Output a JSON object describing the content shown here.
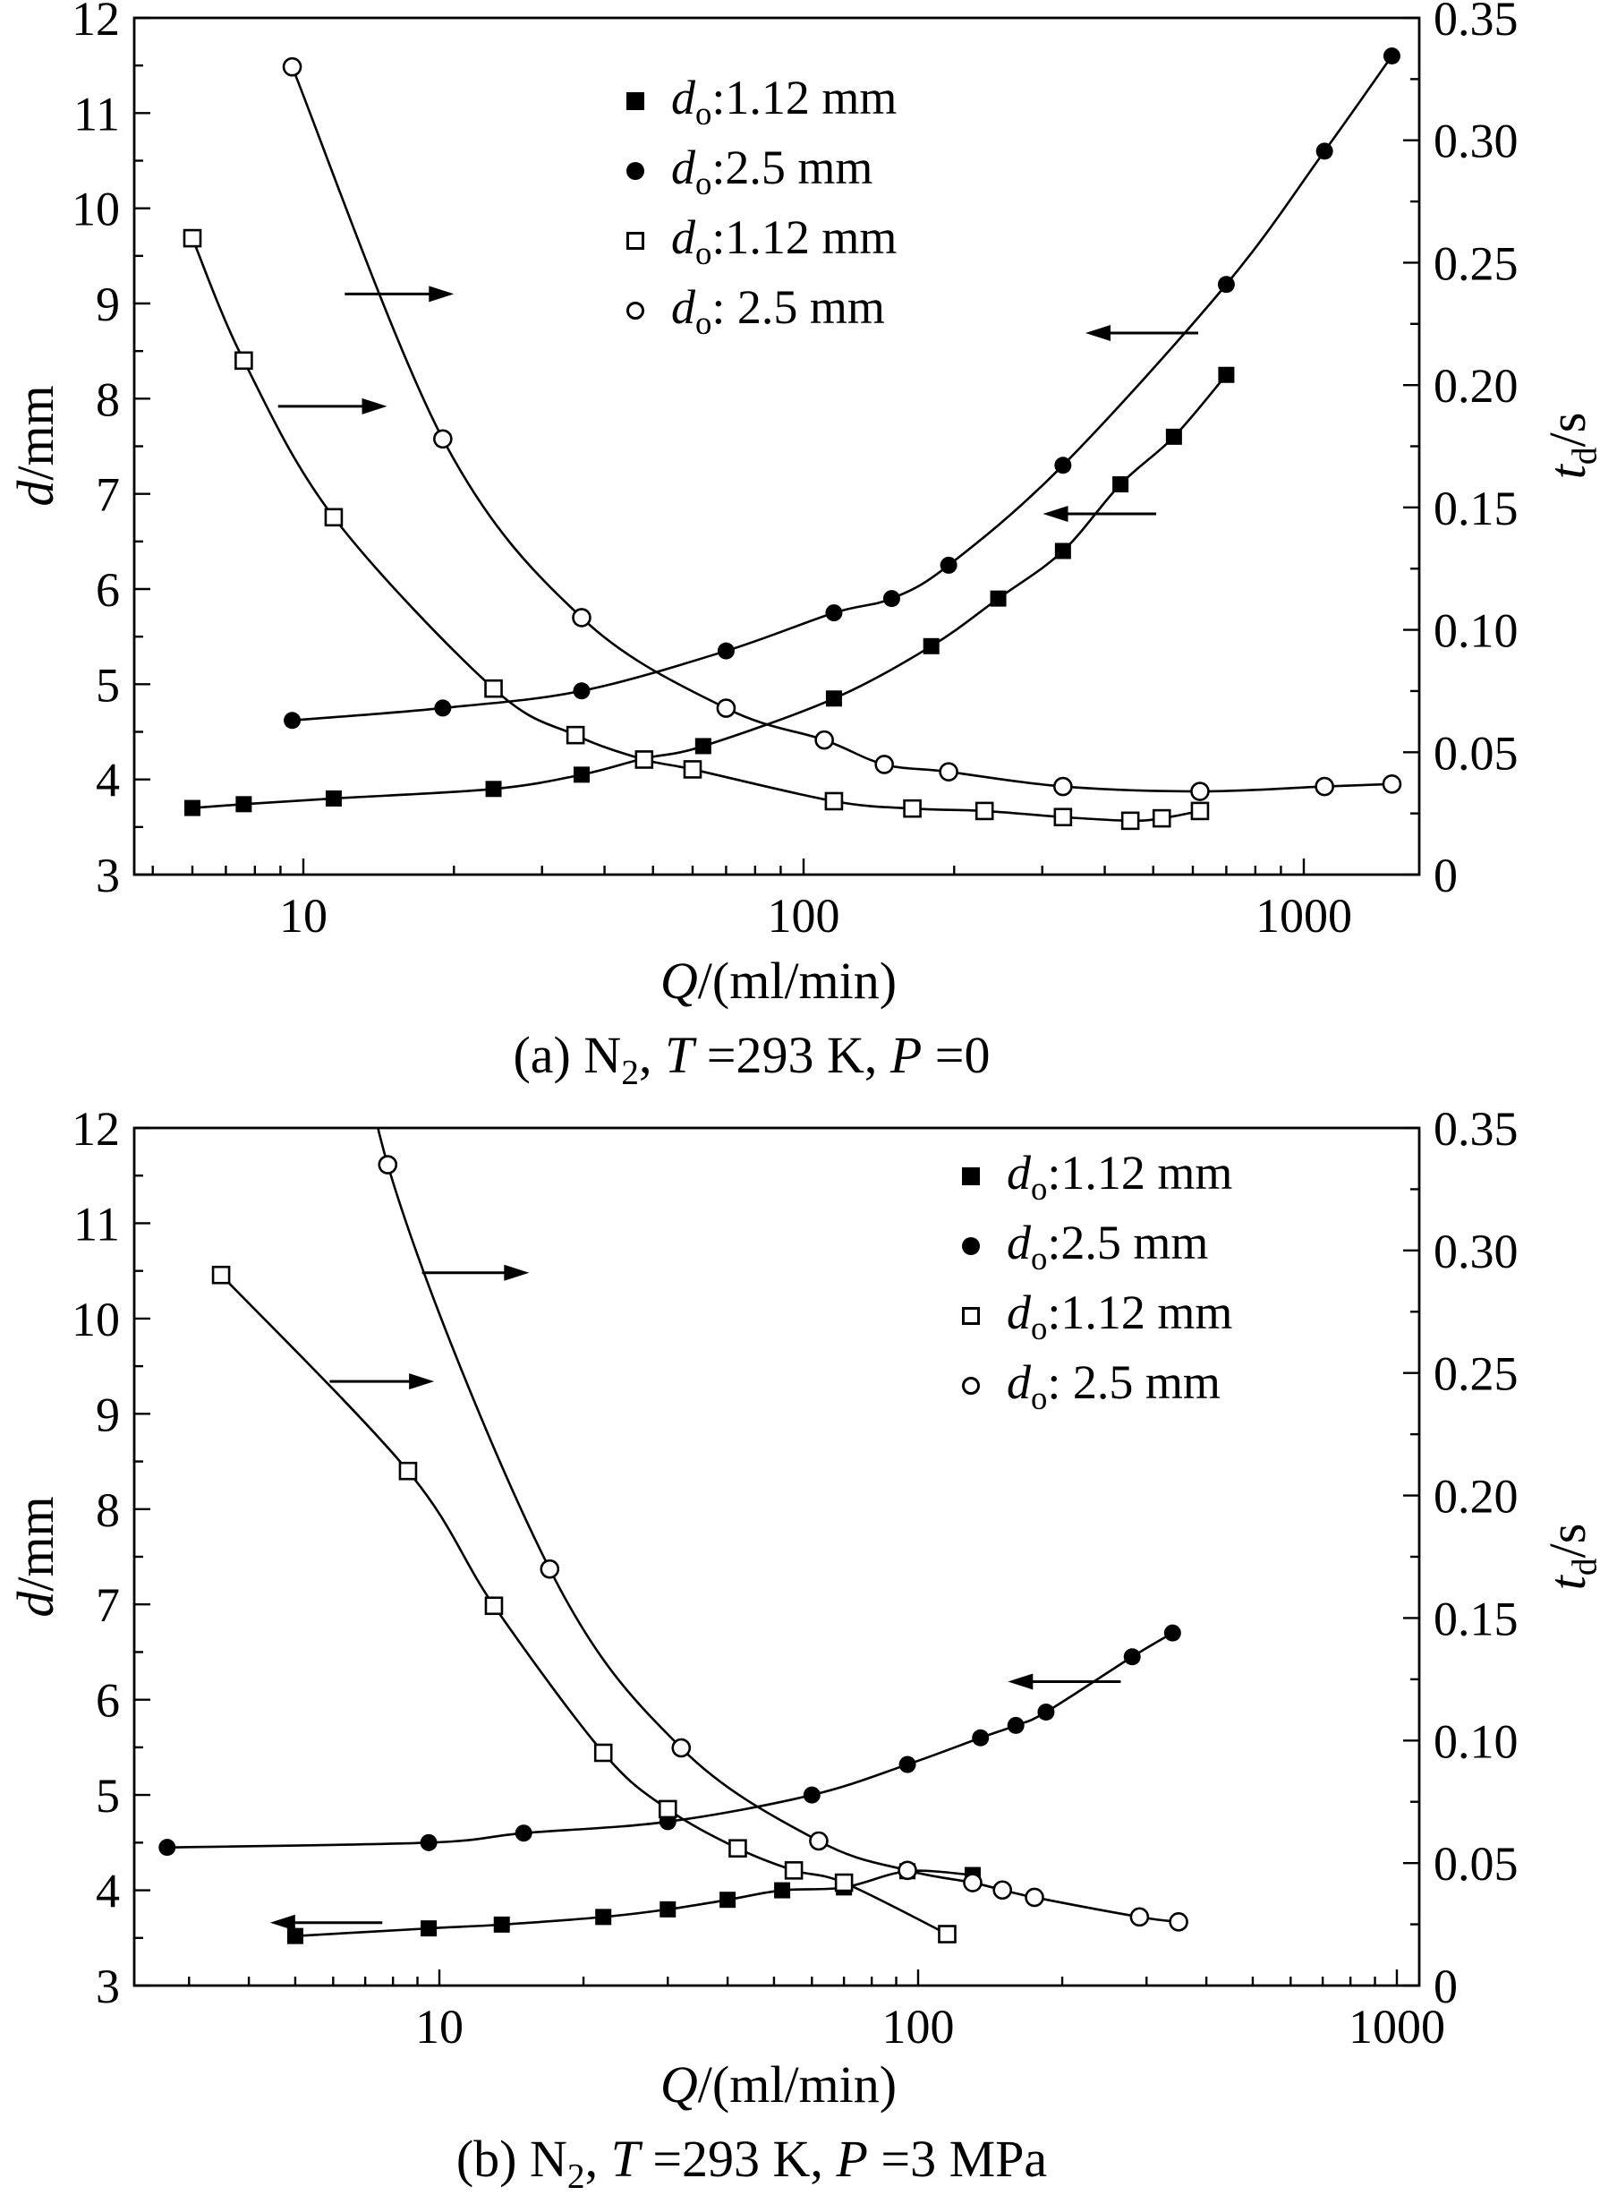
{
  "figure": {
    "background": "#ffffff",
    "ink_color": "#000000"
  },
  "chart_data": [
    {
      "type": "line",
      "panel_id": "a",
      "caption": "(a) N_2_, *T* =293 K, *P* =0",
      "x_axis": {
        "label": "*Q*/(ml/min)",
        "scale": "log",
        "min": 4.6,
        "max": 1700,
        "tick_values": [
          10,
          100,
          1000
        ],
        "tick_labels": [
          "10",
          "100",
          "1000"
        ]
      },
      "y_left_axis": {
        "label": "*d*/mm",
        "min": 3,
        "max": 12,
        "tick_values": [
          3,
          4,
          5,
          6,
          7,
          8,
          9,
          10,
          11,
          12
        ],
        "tick_labels": [
          "3",
          "4",
          "5",
          "6",
          "7",
          "8",
          "9",
          "10",
          "11",
          "12"
        ]
      },
      "y_right_axis": {
        "label": "*t*_d_/s",
        "min": 0,
        "max": 0.35,
        "tick_values": [
          0,
          0.05,
          0.1,
          0.15,
          0.2,
          0.25,
          0.3,
          0.35
        ],
        "tick_labels": [
          "0",
          "0.05",
          "0.10",
          "0.15",
          "0.20",
          "0.25",
          "0.30",
          "0.35"
        ]
      },
      "legend": [
        {
          "marker": "filled-square",
          "label": "*d*_o_:1.12 mm"
        },
        {
          "marker": "filled-circle",
          "label": "*d*_o_:2.5 mm"
        },
        {
          "marker": "open-square",
          "label": "*d*_o_:1.12 mm"
        },
        {
          "marker": "open-circle",
          "label": "*d*_o_: 2.5 mm"
        }
      ],
      "series": [
        {
          "name": "bubble diameter d, do=1.12 mm",
          "marker": "filled-square",
          "axis": "left",
          "points": [
            [
              6,
              3.7
            ],
            [
              7.6,
              3.74
            ],
            [
              11.5,
              3.8
            ],
            [
              24,
              3.9
            ],
            [
              36,
              4.05
            ],
            [
              48,
              4.22
            ],
            [
              63,
              4.35
            ],
            [
              115,
              4.85
            ],
            [
              180,
              5.4
            ],
            [
              245,
              5.9
            ],
            [
              330,
              6.4
            ],
            [
              430,
              7.1
            ],
            [
              550,
              7.6
            ],
            [
              700,
              8.25
            ]
          ]
        },
        {
          "name": "bubble diameter d, do=2.5 mm",
          "marker": "filled-circle",
          "axis": "left",
          "points": [
            [
              9.5,
              4.62
            ],
            [
              19,
              4.75
            ],
            [
              36,
              4.93
            ],
            [
              70,
              5.35
            ],
            [
              115,
              5.75
            ],
            [
              150,
              5.9
            ],
            [
              195,
              6.25
            ],
            [
              330,
              7.3
            ],
            [
              700,
              9.2
            ],
            [
              1100,
              10.6
            ],
            [
              1500,
              11.6
            ]
          ]
        },
        {
          "name": "detachment time td, do=1.12 mm",
          "marker": "open-square",
          "axis": "right",
          "points": [
            [
              6,
              0.26
            ],
            [
              7.6,
              0.21
            ],
            [
              11.5,
              0.146
            ],
            [
              24,
              0.076
            ],
            [
              35,
              0.057
            ],
            [
              48,
              0.047
            ],
            [
              60,
              0.043
            ],
            [
              115,
              0.03
            ],
            [
              165,
              0.027
            ],
            [
              230,
              0.026
            ],
            [
              330,
              0.0235
            ],
            [
              450,
              0.022
            ],
            [
              520,
              0.023
            ],
            [
              620,
              0.026
            ]
          ]
        },
        {
          "name": "detachment time td, do=2.5 mm",
          "marker": "open-circle",
          "axis": "right",
          "points": [
            [
              9.5,
              0.33
            ],
            [
              19,
              0.178
            ],
            [
              36,
              0.105
            ],
            [
              70,
              0.068
            ],
            [
              110,
              0.055
            ],
            [
              145,
              0.045
            ],
            [
              195,
              0.042
            ],
            [
              330,
              0.036
            ],
            [
              620,
              0.034
            ],
            [
              1100,
              0.036
            ],
            [
              1500,
              0.037
            ]
          ]
        }
      ],
      "arrows": [
        {
          "x_tail": 12.1,
          "x_head": 20,
          "y_left": 9.1,
          "points_to": "right-axis"
        },
        {
          "x_tail": 8.9,
          "x_head": 14.7,
          "y_left": 7.92,
          "points_to": "right-axis"
        },
        {
          "x_tail": 615,
          "x_head": 366,
          "y_left": 8.69,
          "points_to": "left-axis"
        },
        {
          "x_tail": 507,
          "x_head": 301,
          "y_left": 6.79,
          "points_to": "left-axis"
        }
      ]
    },
    {
      "type": "line",
      "panel_id": "b",
      "caption": "(b) N_2_, *T* =293 K, *P* =3 MPa",
      "x_axis": {
        "label": "*Q*/(ml/min)",
        "scale": "log",
        "min": 2.3,
        "max": 1110,
        "tick_values": [
          10,
          100,
          1000
        ],
        "tick_labels": [
          "10",
          "100",
          "1000"
        ]
      },
      "y_left_axis": {
        "label": "*d*/mm",
        "min": 3,
        "max": 12,
        "tick_values": [
          3,
          4,
          5,
          6,
          7,
          8,
          9,
          10,
          11,
          12
        ],
        "tick_labels": [
          "3",
          "4",
          "5",
          "6",
          "7",
          "8",
          "9",
          "10",
          "11",
          "12"
        ]
      },
      "y_right_axis": {
        "label": "*t*_d_/s",
        "min": 0,
        "max": 0.35,
        "tick_values": [
          0,
          0.05,
          0.1,
          0.15,
          0.2,
          0.25,
          0.3,
          0.35
        ],
        "tick_labels": [
          "0",
          "0.05",
          "0.10",
          "0.15",
          "0.20",
          "0.25",
          "0.30",
          "0.35"
        ]
      },
      "legend": [
        {
          "marker": "filled-square",
          "label": "*d*_o_:1.12 mm"
        },
        {
          "marker": "filled-circle",
          "label": "*d*_o_:2.5 mm"
        },
        {
          "marker": "open-square",
          "label": "*d*_o_:1.12 mm"
        },
        {
          "marker": "open-circle",
          "label": "*d*_o_: 2.5 mm"
        }
      ],
      "series": [
        {
          "name": "bubble diameter d, do=1.12 mm",
          "marker": "filled-square",
          "axis": "left",
          "points": [
            [
              5,
              3.52
            ],
            [
              9.5,
              3.6
            ],
            [
              13.5,
              3.64
            ],
            [
              22,
              3.72
            ],
            [
              30,
              3.8
            ],
            [
              40,
              3.9
            ],
            [
              52,
              4.0
            ],
            [
              70,
              4.03
            ],
            [
              95,
              4.2
            ],
            [
              130,
              4.16
            ]
          ]
        },
        {
          "name": "bubble diameter d, do=2.5 mm",
          "marker": "filled-circle",
          "axis": "left",
          "points": [
            [
              2.7,
              4.45
            ],
            [
              9.5,
              4.5
            ],
            [
              15,
              4.6
            ],
            [
              30,
              4.72
            ],
            [
              60,
              5.0
            ],
            [
              95,
              5.32
            ],
            [
              135,
              5.6
            ],
            [
              160,
              5.73
            ],
            [
              185,
              5.87
            ],
            [
              280,
              6.45
            ],
            [
              340,
              6.7
            ]
          ]
        },
        {
          "name": "detachment time td, do=1.12 mm",
          "marker": "open-square",
          "axis": "right",
          "points": [
            [
              3.5,
              0.29
            ],
            [
              8.6,
              0.21
            ],
            [
              13,
              0.155
            ],
            [
              22,
              0.095
            ],
            [
              30,
              0.072
            ],
            [
              42,
              0.056
            ],
            [
              55,
              0.047
            ],
            [
              70,
              0.042
            ],
            [
              115,
              0.021
            ]
          ]
        },
        {
          "name": "detachment time td, do=2.5 mm",
          "marker": "open-circle",
          "axis": "right",
          "line_start_extension": [
            6.2,
            0.46
          ],
          "points": [
            [
              7.8,
              0.335
            ],
            [
              17,
              0.17
            ],
            [
              32,
              0.097
            ],
            [
              62,
              0.059
            ],
            [
              95,
              0.047
            ],
            [
              130,
              0.042
            ],
            [
              150,
              0.039
            ],
            [
              175,
              0.036
            ],
            [
              290,
              0.028
            ],
            [
              350,
              0.026
            ]
          ]
        }
      ],
      "arrows": [
        {
          "x_tail": 9.2,
          "x_head": 15.4,
          "y_left": 10.48,
          "points_to": "right-axis"
        },
        {
          "x_tail": 5.9,
          "x_head": 9.75,
          "y_left": 9.34,
          "points_to": "right-axis"
        },
        {
          "x_tail": 265,
          "x_head": 154,
          "y_left": 6.19,
          "points_to": "left-axis"
        },
        {
          "x_tail": 7.6,
          "x_head": 4.43,
          "y_left": 3.66,
          "points_to": "left-axis"
        }
      ]
    }
  ]
}
